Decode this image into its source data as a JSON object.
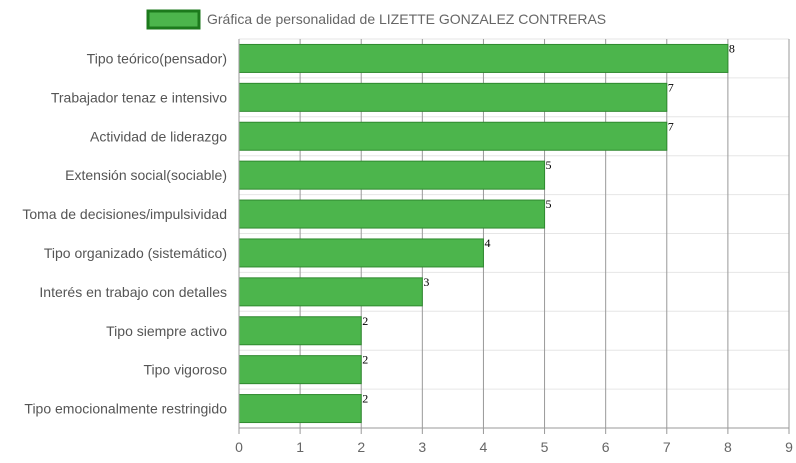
{
  "chart_data": {
    "type": "bar",
    "orientation": "horizontal",
    "title": "",
    "xlabel": "",
    "ylabel": "",
    "xlim": [
      0,
      9
    ],
    "x_ticks": [
      0,
      1,
      2,
      3,
      4,
      5,
      6,
      7,
      8,
      9
    ],
    "grid": true,
    "legend": "top-center",
    "categories": [
      "Tipo teórico(pensador)",
      "Trabajador tenaz e intensivo",
      "Actividad de liderazgo",
      "Extensión social(sociable)",
      "Toma de decisiones/impulsividad",
      "Tipo organizado (sistemático)",
      "Interés en trabajo con detalles",
      "Tipo siempre activo",
      "Tipo vigoroso",
      "Tipo emocionalmente restringido"
    ],
    "series": [
      {
        "name": "Gráfica de personalidad de LIZETTE GONZALEZ CONTRERAS",
        "values": [
          8,
          7,
          7,
          5,
          5,
          4,
          3,
          2,
          2,
          2
        ],
        "color": "#4cb54c",
        "border_color": "#2f8a2f"
      }
    ]
  },
  "colors": {
    "grid_major": "#999999",
    "grid_minor": "#e6e6e6",
    "axis": "#999999",
    "legend_border": "#1c7a1c"
  }
}
